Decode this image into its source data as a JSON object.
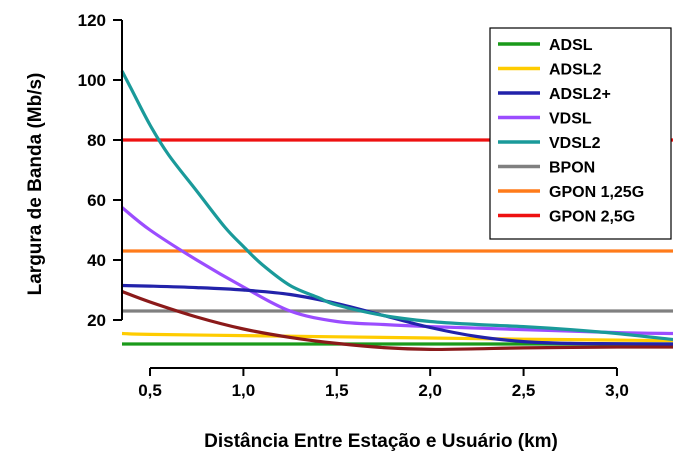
{
  "chart_data": {
    "type": "line",
    "title": "",
    "xlabel": "Distância Entre Estação e Usuário (km)",
    "ylabel": "Largura de Banda (Mb/s)",
    "xlim": [
      0.35,
      3.3
    ],
    "ylim": [
      8,
      122
    ],
    "x_ticks": [
      0.5,
      1.0,
      1.5,
      2.0,
      2.5,
      3.0
    ],
    "x_tick_labels": [
      "0,5",
      "1,0",
      "1,5",
      "2,0",
      "2,5",
      "3,0"
    ],
    "y_ticks": [
      20,
      40,
      60,
      80,
      100,
      120
    ],
    "y_tick_labels": [
      "20",
      "40",
      "60",
      "80",
      "100",
      "120"
    ],
    "grid": false,
    "legend_position": "top-right",
    "series": [
      {
        "name": "ADSL",
        "color": "#1a9a1a",
        "x": [
          0.35,
          1.0,
          1.5,
          2.0,
          2.5,
          3.0,
          3.3
        ],
        "y": [
          12,
          12,
          12,
          12,
          12,
          12,
          12
        ]
      },
      {
        "name": "ADSL2",
        "color": "#ffcc00",
        "x": [
          0.35,
          0.5,
          1.0,
          1.5,
          2.0,
          2.5,
          3.0,
          3.3
        ],
        "y": [
          15.5,
          15.2,
          14.8,
          14.4,
          14,
          13.6,
          13.3,
          13.1
        ]
      },
      {
        "name": "ADSL2+",
        "color": "#2222aa",
        "x": [
          0.35,
          0.5,
          0.75,
          1.0,
          1.25,
          1.5,
          1.75,
          2.0,
          2.25,
          2.5,
          2.75,
          3.0,
          3.3
        ],
        "y": [
          31.5,
          31.3,
          30.8,
          30,
          28.5,
          25.5,
          21.5,
          17.5,
          14.5,
          12.8,
          12.2,
          12.1,
          12
        ]
      },
      {
        "name": "VDSL",
        "color": "#9b4dff",
        "x": [
          0.35,
          0.5,
          0.75,
          1.0,
          1.25,
          1.5,
          1.75,
          2.0,
          2.5,
          3.0,
          3.3
        ],
        "y": [
          57.5,
          50,
          40,
          31,
          23,
          19.5,
          18.5,
          17.8,
          16.8,
          15.8,
          15.5
        ]
      },
      {
        "name": "VDSL2",
        "color": "#1a9a9a",
        "x": [
          0.35,
          0.4,
          0.5,
          0.6,
          0.75,
          0.9,
          1.0,
          1.1,
          1.25,
          1.4,
          1.5,
          1.75,
          2.0,
          2.25,
          2.5,
          2.75,
          3.0,
          3.3
        ],
        "y": [
          103,
          97,
          85,
          75,
          63,
          51,
          44.5,
          38.5,
          31.5,
          27.5,
          25,
          21.5,
          19.5,
          18.5,
          17.8,
          16.8,
          15.5,
          13.5
        ]
      },
      {
        "name": "BPON",
        "color": "#808080",
        "x": [
          0.35,
          3.3
        ],
        "y": [
          23,
          23
        ]
      },
      {
        "name": "GPON 1,25G",
        "color": "#ff7b1a",
        "x": [
          0.35,
          3.3
        ],
        "y": [
          43,
          43
        ]
      },
      {
        "name": "GPON 2,5G",
        "color": "#ee1111",
        "x": [
          0.35,
          3.3
        ],
        "y": [
          80,
          80
        ]
      },
      {
        "name": "",
        "color": "#8b1a1a",
        "x": [
          0.35,
          0.5,
          0.75,
          1.0,
          1.25,
          1.5,
          1.75,
          2.0,
          2.25,
          2.5,
          3.0,
          3.3
        ],
        "y": [
          29.5,
          26,
          21,
          17,
          14.2,
          12.2,
          10.8,
          10.2,
          10.4,
          10.7,
          11,
          11
        ]
      }
    ]
  }
}
